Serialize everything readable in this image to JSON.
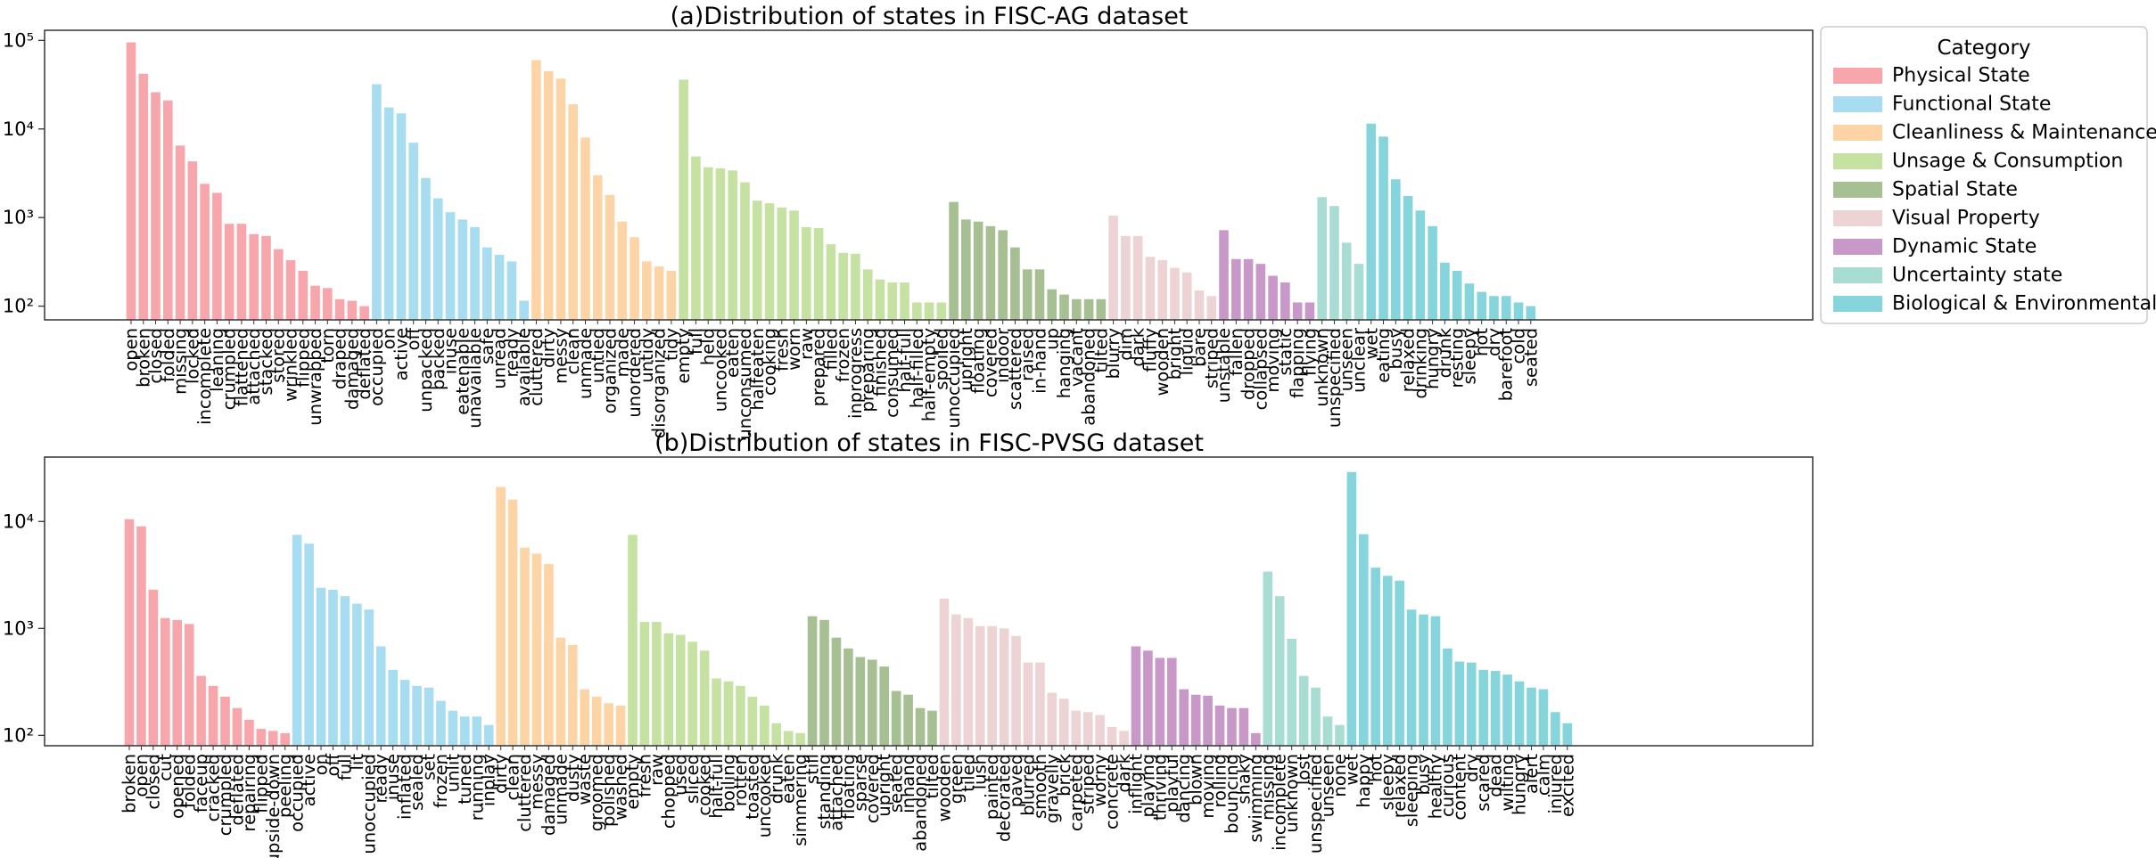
{
  "figure": {
    "legend": {
      "title": "Category",
      "placement": "outside-right",
      "items": [
        {
          "label": "Physical State",
          "color": "#F7A6AB"
        },
        {
          "label": "Functional State",
          "color": "#A8DCF0"
        },
        {
          "label": "Cleanliness & Maintenance",
          "color": "#FDD4A6"
        },
        {
          "label": "Unsage & Consumption",
          "color": "#C6E2A2"
        },
        {
          "label": "Spatial State",
          "color": "#A6BF93"
        },
        {
          "label": "Visual Property",
          "color": "#EDD3D4"
        },
        {
          "label": "Dynamic State",
          "color": "#C898C9"
        },
        {
          "label": "Uncertainty state",
          "color": "#A8DDD4"
        },
        {
          "label": "Biological & Environmental",
          "color": "#86D4DC"
        }
      ]
    }
  },
  "chart_data": [
    {
      "type": "bar",
      "title": "(a)Distribution of states in FISC-AG dataset",
      "xlabel": "",
      "ylabel": "",
      "yscale": "log",
      "ylim": [
        70,
        130000
      ],
      "yticks": [
        {
          "value": 100,
          "label": "10²"
        },
        {
          "value": 1000,
          "label": "10³"
        },
        {
          "value": 10000,
          "label": "10⁴"
        },
        {
          "value": 100000,
          "label": "10⁵"
        }
      ],
      "grid": false,
      "series": [
        {
          "name": "Physical State",
          "categories": [
            "open",
            "broken",
            "closed",
            "folded",
            "missing",
            "locked",
            "incomplete",
            "leaning",
            "crumpled",
            "flattened",
            "attached",
            "stacked",
            "stored",
            "wrinkled",
            "flipped",
            "unwrapped",
            "torn",
            "draped",
            "damaged",
            "deflated"
          ],
          "values": [
            95000,
            42000,
            26000,
            21000,
            6500,
            4300,
            2400,
            1900,
            850,
            850,
            650,
            620,
            440,
            330,
            250,
            170,
            160,
            120,
            115,
            100
          ]
        },
        {
          "name": "Functional State",
          "categories": [
            "occupied",
            "on",
            "active",
            "off",
            "unpacked",
            "packed",
            "inuse",
            "eatenable",
            "unavailable",
            "safe",
            "unread",
            "ready",
            "available"
          ],
          "values": [
            32000,
            17500,
            15000,
            7000,
            2800,
            1650,
            1150,
            950,
            780,
            460,
            380,
            320,
            115
          ]
        },
        {
          "name": "Cleanliness & Maintenance",
          "categories": [
            "cluttered",
            "dirty",
            "messy",
            "clean",
            "unmade",
            "untied",
            "organized",
            "made",
            "unordered",
            "untidy",
            "disorganized",
            "tidy"
          ],
          "values": [
            60000,
            45000,
            37000,
            19000,
            8000,
            3000,
            1800,
            900,
            600,
            320,
            280,
            250
          ]
        },
        {
          "name": "Unsage & Consumption",
          "categories": [
            "empty",
            "full",
            "held",
            "uncooked",
            "eaten",
            "unconsumed",
            "halfeaten",
            "cooking",
            "fresh",
            "worn",
            "raw",
            "prepared",
            "filled",
            "frozen",
            "inprogress",
            "preparing",
            "finished",
            "consumed",
            "half-full",
            "half-filled",
            "half-empty",
            "spoiled"
          ],
          "values": [
            36000,
            4900,
            3700,
            3600,
            3400,
            2500,
            1550,
            1450,
            1300,
            1200,
            780,
            760,
            500,
            400,
            390,
            260,
            200,
            185,
            185,
            110,
            110,
            110
          ]
        },
        {
          "name": "Spatial State",
          "categories": [
            "unoccupied",
            "upright",
            "floating",
            "covered",
            "indoor",
            "scattered",
            "raised",
            "in-hand",
            "up",
            "hanging",
            "vacant",
            "abandoned",
            "tilted"
          ],
          "values": [
            1500,
            950,
            900,
            800,
            720,
            460,
            260,
            260,
            155,
            135,
            120,
            120,
            120
          ]
        },
        {
          "name": "Visual Property",
          "categories": [
            "blurry",
            "dim",
            "dark",
            "fluffy",
            "wooden",
            "bright",
            "liquid",
            "bare",
            "striped"
          ],
          "values": [
            1050,
            620,
            620,
            360,
            330,
            270,
            240,
            150,
            130
          ]
        },
        {
          "name": "Dynamic State",
          "categories": [
            "unstable",
            "fallen",
            "dropped",
            "collapsed",
            "moving",
            "static",
            "flapping",
            "flying"
          ],
          "values": [
            720,
            340,
            340,
            300,
            220,
            185,
            110,
            110
          ]
        },
        {
          "name": "Uncertainty state",
          "categories": [
            "unknown",
            "unspecified",
            "unseen",
            "unclear"
          ],
          "values": [
            1700,
            1350,
            520,
            300
          ]
        },
        {
          "name": "Biological & Environmental",
          "categories": [
            "wet",
            "eating",
            "busy",
            "relaxed",
            "drinking",
            "hungry",
            "drunk",
            "resting",
            "sleepy",
            "hot",
            "dry",
            "barefoot",
            "cold",
            "seated"
          ],
          "values": [
            11500,
            8200,
            2700,
            1750,
            1200,
            800,
            310,
            250,
            180,
            145,
            130,
            130,
            110,
            100
          ]
        }
      ]
    },
    {
      "type": "bar",
      "title": "(b)Distribution of states in FISC-PVSG dataset",
      "xlabel": "",
      "ylabel": "",
      "yscale": "log",
      "ylim": [
        80,
        40000
      ],
      "yticks": [
        {
          "value": 100,
          "label": "10²"
        },
        {
          "value": 1000,
          "label": "10³"
        },
        {
          "value": 10000,
          "label": "10⁴"
        }
      ],
      "grid": false,
      "series": [
        {
          "name": "Physical State",
          "categories": [
            "broken",
            "open",
            "closed",
            "cut",
            "opened",
            "folded",
            "faceup",
            "cracked",
            "crumpled",
            "deflated",
            "repairing",
            "flipped",
            "upside-down",
            "peeling"
          ],
          "values": [
            10500,
            9000,
            2300,
            1250,
            1200,
            1100,
            360,
            290,
            230,
            180,
            140,
            115,
            110,
            105
          ]
        },
        {
          "name": "Functional State",
          "categories": [
            "occupied",
            "active",
            "on",
            "off",
            "full",
            "lit",
            "unoccupied",
            "ready",
            "inuse",
            "inflated",
            "sealed",
            "set",
            "frozen",
            "unlit",
            "tuned",
            "running",
            "inplay"
          ],
          "values": [
            7500,
            6200,
            2400,
            2300,
            2000,
            1700,
            1500,
            680,
            410,
            330,
            290,
            280,
            210,
            170,
            150,
            150,
            125
          ]
        },
        {
          "name": "Cleanliness & Maintenance",
          "categories": [
            "dirty",
            "clean",
            "cluttered",
            "messy",
            "damaged",
            "unmade",
            "dusty",
            "waste",
            "groomed",
            "polished",
            "washed"
          ],
          "values": [
            21000,
            16000,
            5700,
            5000,
            4000,
            820,
            700,
            270,
            230,
            200,
            190
          ]
        },
        {
          "name": "Unsage & Consumption",
          "categories": [
            "empty",
            "fresh",
            "raw",
            "chopped",
            "used",
            "sliced",
            "cooked",
            "half-full",
            "boiling",
            "rotten",
            "toasted",
            "uncooked",
            "drunk",
            "eaten",
            "simmering"
          ],
          "values": [
            7500,
            1150,
            1150,
            900,
            870,
            750,
            620,
            340,
            320,
            290,
            230,
            190,
            130,
            110,
            105
          ]
        },
        {
          "name": "Spatial State",
          "categories": [
            "still",
            "standing",
            "attached",
            "floating",
            "sparse",
            "covered",
            "upright",
            "seated",
            "inhand",
            "abandoned",
            "tilted"
          ],
          "values": [
            1300,
            1200,
            820,
            650,
            540,
            510,
            440,
            260,
            240,
            180,
            170
          ]
        },
        {
          "name": "Visual Property",
          "categories": [
            "wooden",
            "green",
            "tiled",
            "lush",
            "painted",
            "decorated",
            "paved",
            "blurred",
            "smooth",
            "gravelly",
            "brick",
            "carpeted",
            "striped",
            "worny",
            "concrete",
            "dark"
          ],
          "values": [
            1900,
            1350,
            1250,
            1050,
            1050,
            1000,
            850,
            480,
            480,
            250,
            220,
            170,
            165,
            155,
            120,
            110
          ]
        },
        {
          "name": "Dynamic State",
          "categories": [
            "inflight",
            "playing",
            "thriving",
            "playful",
            "dancing",
            "blown",
            "moving",
            "rolling",
            "bouncing",
            "shaky",
            "swimming"
          ],
          "values": [
            680,
            620,
            530,
            530,
            270,
            240,
            235,
            190,
            180,
            180,
            105
          ]
        },
        {
          "name": "Uncertainty state",
          "categories": [
            "missing",
            "incomplete",
            "unknown",
            "lost",
            "unspecified",
            "unseen",
            "none"
          ],
          "values": [
            3400,
            2000,
            800,
            360,
            280,
            150,
            125
          ]
        },
        {
          "name": "Biological & Environmental",
          "categories": [
            "wet",
            "happy",
            "hot",
            "sleepy",
            "relaxed",
            "sleeping",
            "busy",
            "healthy",
            "curious",
            "content",
            "dry",
            "scared",
            "dead",
            "wilting",
            "hungry",
            "alert",
            "calm",
            "injured",
            "excited"
          ],
          "values": [
            29000,
            7600,
            3700,
            3100,
            2800,
            1500,
            1350,
            1300,
            650,
            490,
            480,
            410,
            400,
            370,
            320,
            280,
            270,
            165,
            130
          ]
        }
      ]
    }
  ]
}
